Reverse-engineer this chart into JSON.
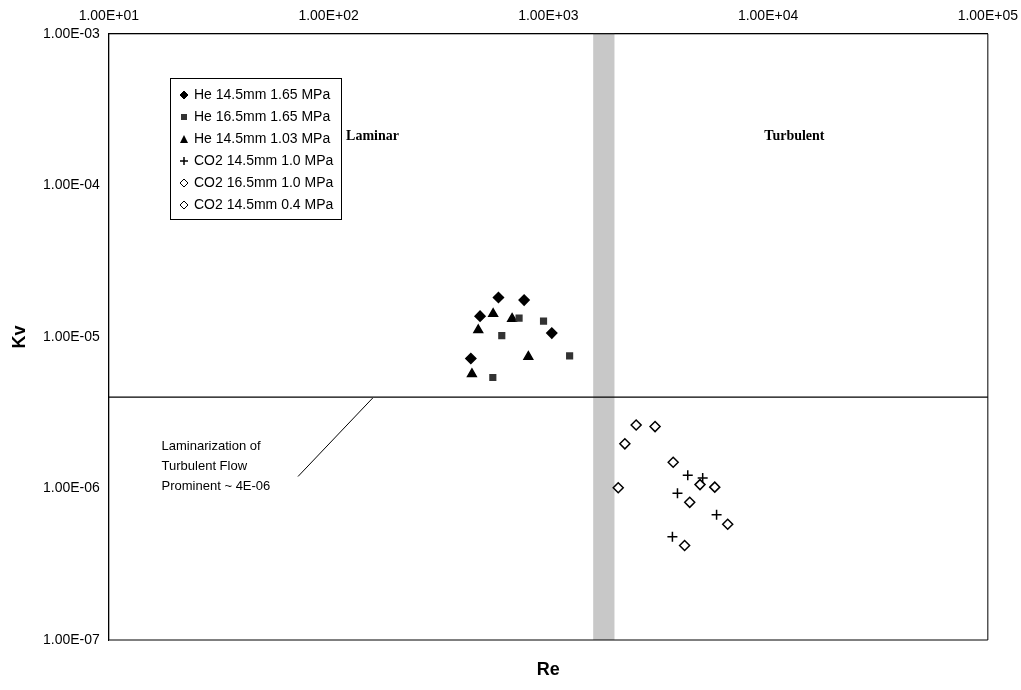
{
  "chart_data": {
    "type": "scatter",
    "xlabel": "Re",
    "ylabel": "Kv",
    "log": "xy",
    "grid": false,
    "legend": "top left",
    "xlim": [
      10,
      100000
    ],
    "xticks": [
      {
        "value": 10,
        "label": "1.00E+01"
      },
      {
        "value": 100,
        "label": "1.00E+02"
      },
      {
        "value": 1000,
        "label": "1.00E+03"
      },
      {
        "value": 10000,
        "label": "1.00E+04"
      },
      {
        "value": 100000,
        "label": "1.00E+05"
      }
    ],
    "ylim": [
      1e-07,
      0.001
    ],
    "yticks": [
      {
        "value": 1e-07,
        "label": "1.00E-07"
      },
      {
        "value": 1e-06,
        "label": "1.00E-06"
      },
      {
        "value": 1e-05,
        "label": "1.00E-05"
      },
      {
        "value": 0.0001,
        "label": "1.00E-04"
      },
      {
        "value": 0.001,
        "label": "1.00E-03"
      }
    ],
    "series": [
      {
        "name": "He 14.5mm 1.65 MPa",
        "color": "#000000",
        "marker": "diamond",
        "x": [
          593,
          776,
          489,
          1037,
          444
        ],
        "values": [
          1.82e-05,
          1.75e-05,
          1.37e-05,
          1.06e-05,
          7.2e-06
        ]
      },
      {
        "name": "He 16.5mm 1.65 MPa",
        "color": "#333333",
        "marker": "square",
        "x": [
          736,
          951,
          614,
          1250,
          559
        ],
        "values": [
          1.33e-05,
          1.27e-05,
          1.02e-05,
          7.5e-06,
          5.4e-06
        ]
      },
      {
        "name": "He 14.5mm 1.03 MPa",
        "color": "#000000",
        "marker": "triangle",
        "x": [
          561,
          684,
          480,
          811,
          449
        ],
        "values": [
          1.42e-05,
          1.32e-05,
          1.11e-05,
          7.4e-06,
          5.7e-06
        ]
      },
      {
        "name": "CO2 14.5mm 1.0 MPa",
        "color": "#000000",
        "marker": "cross",
        "x": [
          4310,
          5040,
          3870,
          5830,
          3670
        ],
        "values": [
          1.22e-06,
          1.17e-06,
          9.3e-07,
          6.7e-07,
          4.8e-07
        ]
      },
      {
        "name": "CO2 16.5mm 1.0 MPa",
        "color": "#000000",
        "marker": "diamond-open",
        "x": [
          2510,
          2230,
          2080
        ],
        "values": [
          2.62e-06,
          1.97e-06,
          1.01e-06
        ]
      },
      {
        "name": "CO2 14.5mm 0.4 MPa",
        "color": "#000000",
        "marker": "diamond-open",
        "x": [
          3060,
          3700,
          4900,
          5720,
          4400,
          6550,
          4170
        ],
        "values": [
          2.56e-06,
          1.49e-06,
          1.06e-06,
          1.02e-06,
          8.1e-07,
          5.8e-07,
          4.2e-07
        ]
      }
    ],
    "ref_lines": [
      {
        "axis": "y",
        "value": 4e-06,
        "color": "#000000"
      }
    ],
    "bands": [
      {
        "axis": "x",
        "from": 1600,
        "to": 2000,
        "color": "#c8c8c8"
      }
    ],
    "annotations": [
      "Laminar",
      "Turbulent",
      "Laminarization of\nTurbulent Flow\nProminent ~ 4E-06"
    ]
  }
}
